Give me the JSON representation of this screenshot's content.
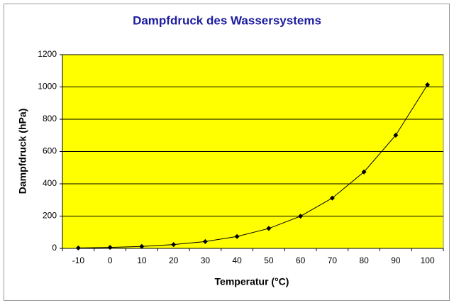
{
  "chart_data": {
    "type": "line",
    "title": "Dampfdruck des Wassersystems",
    "x_label": "Temperatur (°C)",
    "y_label": "Dampfdruck  (hPa)",
    "categories": [
      "-10",
      "0",
      "10",
      "20",
      "30",
      "40",
      "50",
      "60",
      "70",
      "80",
      "90",
      "100"
    ],
    "series": [
      {
        "name": "Dampfdruck",
        "color": "#000000",
        "values": [
          2.6,
          6.1,
          12.3,
          23.4,
          42.4,
          73.8,
          123.4,
          199.3,
          311.7,
          473.7,
          701.1,
          1013.2
        ]
      }
    ],
    "ylim": [
      0,
      1200
    ],
    "yticks": [
      0,
      200,
      400,
      600,
      800,
      1000,
      1200
    ],
    "grid": true,
    "background": "#ffff00"
  }
}
